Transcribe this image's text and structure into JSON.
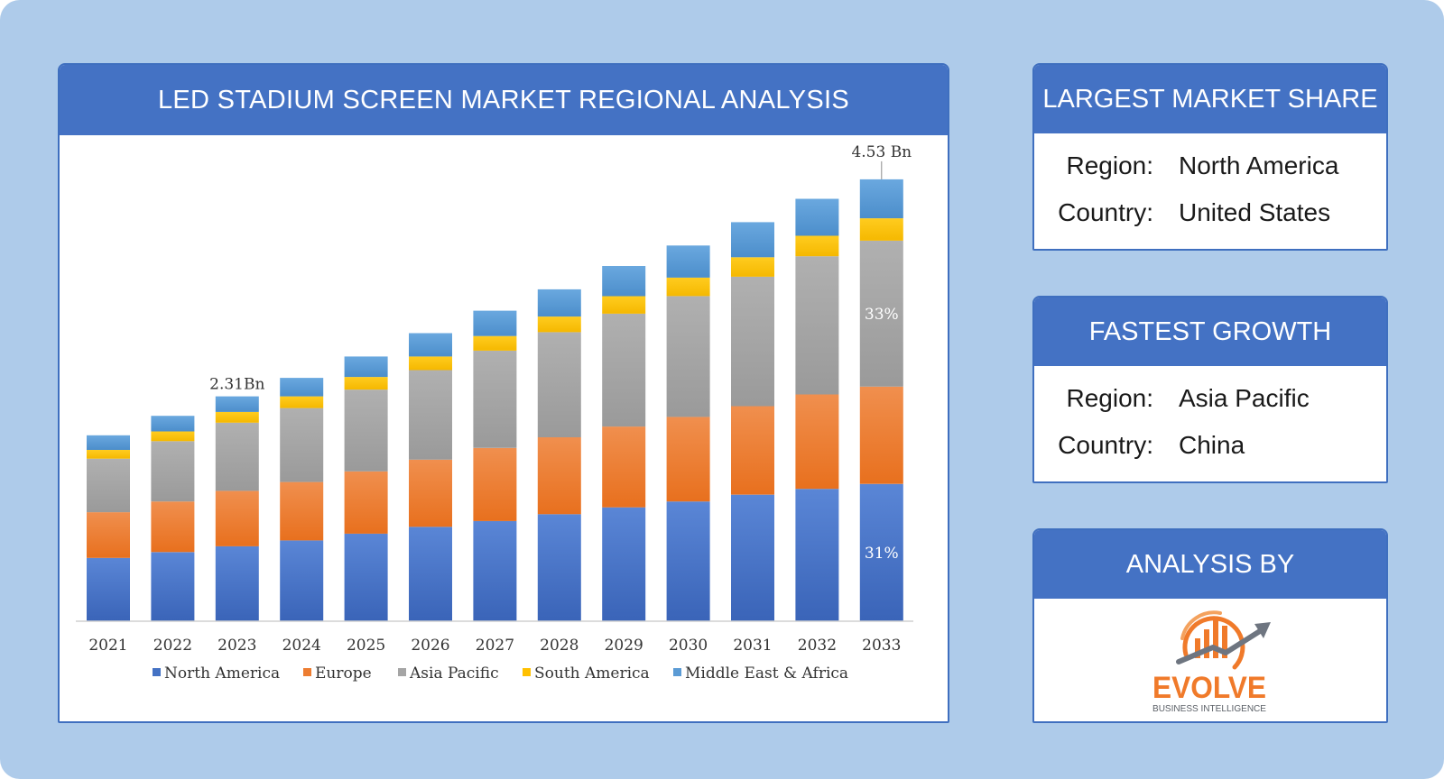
{
  "chart_panel": {
    "title": "LED STADIUM SCREEN MARKET REGIONAL ANALYSIS"
  },
  "chart_data": {
    "type": "bar",
    "stacked": true,
    "title": "LED STADIUM SCREEN MARKET REGIONAL ANALYSIS",
    "categories": [
      "2021",
      "2022",
      "2023",
      "2024",
      "2025",
      "2026",
      "2027",
      "2028",
      "2029",
      "2030",
      "2031",
      "2032",
      "2033"
    ],
    "series": [
      {
        "name": "North America",
        "color": "#4472c4",
        "values": [
          0.65,
          0.71,
          0.77,
          0.83,
          0.9,
          0.97,
          1.03,
          1.1,
          1.17,
          1.23,
          1.3,
          1.36,
          1.41
        ]
      },
      {
        "name": "Europe",
        "color": "#ed7d31",
        "values": [
          0.47,
          0.52,
          0.57,
          0.6,
          0.64,
          0.69,
          0.75,
          0.79,
          0.83,
          0.87,
          0.91,
          0.97,
          1.0
        ]
      },
      {
        "name": "Asia Pacific",
        "color": "#a5a5a5",
        "values": [
          0.55,
          0.62,
          0.7,
          0.76,
          0.84,
          0.92,
          1.0,
          1.08,
          1.16,
          1.24,
          1.33,
          1.42,
          1.5
        ]
      },
      {
        "name": "South America",
        "color": "#ffc000",
        "values": [
          0.09,
          0.1,
          0.11,
          0.12,
          0.13,
          0.14,
          0.15,
          0.16,
          0.18,
          0.19,
          0.2,
          0.21,
          0.23
        ]
      },
      {
        "name": "Middle East & Africa",
        "color": "#5b9bd5",
        "values": [
          0.15,
          0.16,
          0.16,
          0.19,
          0.21,
          0.24,
          0.26,
          0.28,
          0.31,
          0.33,
          0.36,
          0.38,
          0.4
        ]
      }
    ],
    "ylim": [
      0,
      4.53
    ],
    "annotations": [
      {
        "text": "2.31Bn",
        "category": "2023"
      },
      {
        "text": "4.53 Bn",
        "category": "2033",
        "leader": true
      },
      {
        "text": "33%",
        "category": "2033",
        "series": "Asia Pacific"
      },
      {
        "text": "31%",
        "category": "2033",
        "series": "North America"
      }
    ],
    "legend": "bottom",
    "grid": false
  },
  "largest_share": {
    "title": "LARGEST MARKET SHARE",
    "region_label": "Region:",
    "region_value": "North America",
    "country_label": "Country:",
    "country_value": "United States"
  },
  "fastest_growth": {
    "title": "FASTEST GROWTH",
    "region_label": "Region:",
    "region_value": "Asia Pacific",
    "country_label": "Country:",
    "country_value": "China"
  },
  "analysis_by": {
    "title": "ANALYSIS BY",
    "logo_word": "EVOLVE",
    "logo_tagline": "BUSINESS INTELLIGENCE"
  }
}
